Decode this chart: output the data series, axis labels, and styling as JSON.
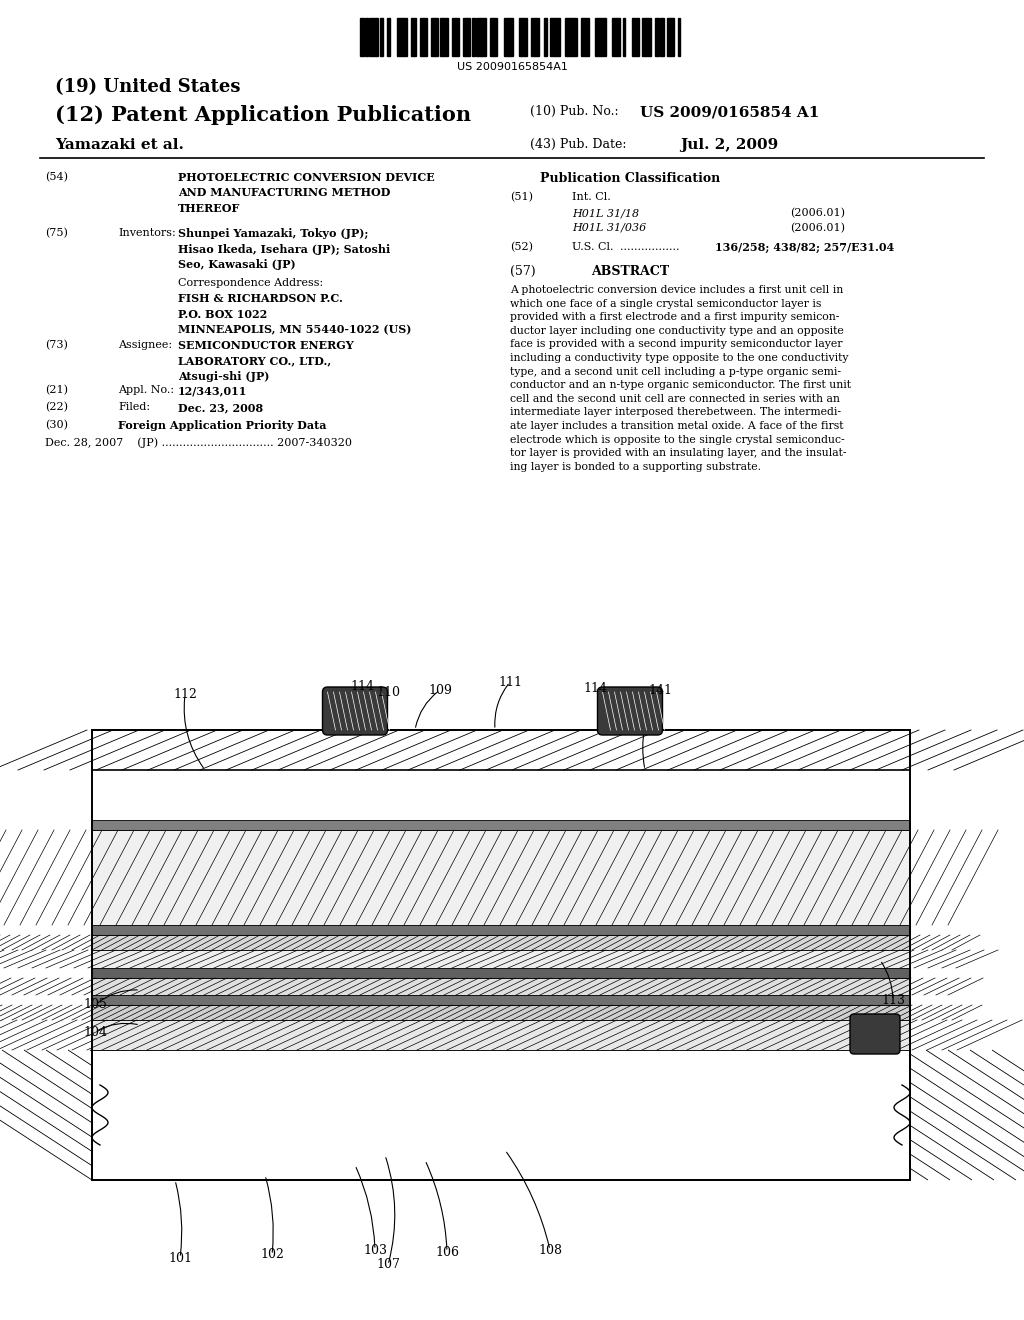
{
  "bg_color": "#ffffff",
  "barcode_text": "US 20090165854A1",
  "title_19": "(19) United States",
  "title_12": "(12) Patent Application Publication",
  "pub_no_label": "(10) Pub. No.:",
  "pub_no_value": "US 2009/0165854 A1",
  "pub_date_label": "(43) Pub. Date:",
  "pub_date_value": "Jul. 2, 2009",
  "inventor_name": "Yamazaki et al.",
  "field54_label": "(54)",
  "field54_text": "PHOTOELECTRIC CONVERSION DEVICE\nAND MANUFACTURING METHOD\nTHEREOF",
  "field75_label": "(75)",
  "field75_title": "Inventors:",
  "field75_text": "Shunpei Yamazaki, Tokyo (JP);\nHisao Ikeda, Isehara (JP); Satoshi\nSeo, Kawasaki (JP)",
  "corr_title": "Correspondence Address:",
  "corr_text": "FISH & RICHARDSON P.C.\nP.O. BOX 1022\nMINNEAPOLIS, MN 55440-1022 (US)",
  "field73_label": "(73)",
  "field73_title": "Assignee:",
  "field73_text": "SEMICONDUCTOR ENERGY\nLABORATORY CO., LTD.,\nAtsugi-shi (JP)",
  "field21_label": "(21)",
  "field21_title": "Appl. No.:",
  "field21_value": "12/343,011",
  "field22_label": "(22)",
  "field22_title": "Filed:",
  "field22_value": "Dec. 23, 2008",
  "field30_label": "(30)",
  "field30_title": "Foreign Application Priority Data",
  "field30_text": "Dec. 28, 2007    (JP) ................................ 2007-340320",
  "pub_class_title": "Publication Classification",
  "field51_label": "(51)",
  "field51_title": "Int. Cl.",
  "field51_text1": "H01L 31/18",
  "field51_date1": "(2006.01)",
  "field51_text2": "H01L 31/036",
  "field51_date2": "(2006.01)",
  "field52_label": "(52)",
  "field52_title": "U.S. Cl.",
  "field52_dots": ".................",
  "field52_value": "136/258; 438/82; 257/E31.04",
  "field57_label": "(57)",
  "field57_title": "ABSTRACT",
  "abstract_text": "A photoelectric conversion device includes a first unit cell in\nwhich one face of a single crystal semiconductor layer is\nprovided with a first electrode and a first impurity semicon-\nductor layer including one conductivity type and an opposite\nface is provided with a second impurity semiconductor layer\nincluding a conductivity type opposite to the one conductivity\ntype, and a second unit cell including a p-type organic semi-\nconductor and an n-type organic semiconductor. The first unit\ncell and the second unit cell are connected in series with an\nintermediate layer interposed therebetween. The intermedi-\nate layer includes a transition metal oxide. A face of the first\nelectrode which is opposite to the single crystal semiconduc-\ntor layer is provided with an insulating layer, and the insulat-\ning layer is bonded to a supporting substrate."
}
